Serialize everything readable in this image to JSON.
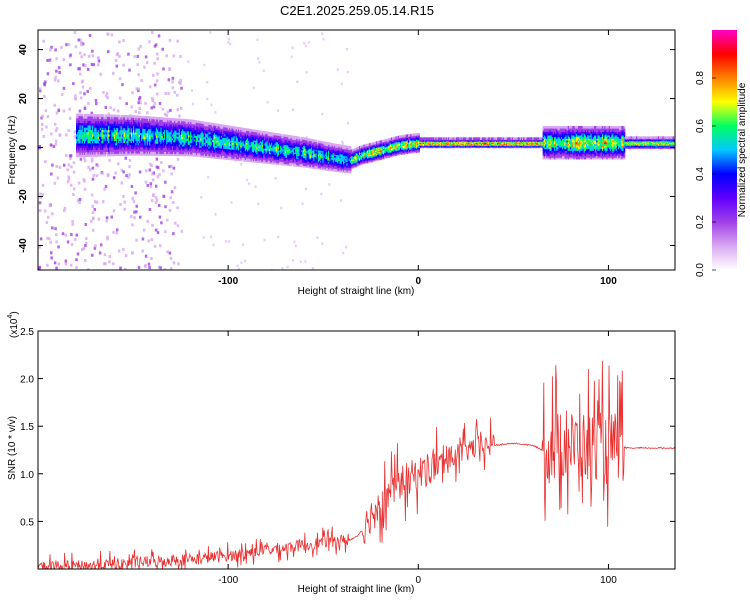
{
  "title": "C2E1.2025.259.05.14.R15",
  "chart_data": [
    {
      "type": "heatmap",
      "xlabel": "Height of straight line (km)",
      "ylabel": "Frequency (Hz)",
      "xlim": [
        -200,
        135
      ],
      "ylim": [
        -50,
        48
      ],
      "x_ticks": [
        -100,
        0,
        100
      ],
      "y_ticks": [
        -40,
        -20,
        0,
        20,
        40
      ],
      "colorbar": {
        "label": "Normalized spectral amplitude",
        "ticks": [
          "0.0",
          "0.2",
          "0.4",
          "0.6",
          "0.8"
        ],
        "range": [
          0,
          1
        ],
        "colors": [
          "#ffffff",
          "#d8a8f0",
          "#a040e8",
          "#6000ff",
          "#0000ff",
          "#00c8ff",
          "#00ff60",
          "#ffff00",
          "#ff8000",
          "#ff0000",
          "#ff00c8"
        ]
      },
      "ridge": [
        {
          "x": -180,
          "y": 5
        },
        {
          "x": -150,
          "y": 5
        },
        {
          "x": -120,
          "y": 4
        },
        {
          "x": -100,
          "y": 2
        },
        {
          "x": -80,
          "y": 0
        },
        {
          "x": -60,
          "y": -2
        },
        {
          "x": -45,
          "y": -4
        },
        {
          "x": -36,
          "y": -5
        },
        {
          "x": -30,
          "y": -3
        },
        {
          "x": -20,
          "y": -1
        },
        {
          "x": -10,
          "y": 1
        },
        {
          "x": 0,
          "y": 2
        },
        {
          "x": 30,
          "y": 2
        },
        {
          "x": 60,
          "y": 2
        },
        {
          "x": 80,
          "y": 2
        },
        {
          "x": 100,
          "y": 2
        },
        {
          "x": 135,
          "y": 2
        }
      ]
    },
    {
      "type": "line",
      "xlabel": "Height of straight line (km)",
      "ylabel": "SNR (10 * v/v)",
      "multiplier": "(x10",
      "multiplier_exp": "4",
      "multiplier_close": ")",
      "xlim": [
        -200,
        135
      ],
      "ylim": [
        0,
        2.5
      ],
      "x_ticks": [
        -100,
        0,
        100
      ],
      "y_ticks": [
        "0.5",
        "1.0",
        "1.5",
        "2.0",
        "2.5"
      ],
      "color": "#e83030",
      "series": [
        {
          "x": [
            -200,
            -180,
            -160,
            -140,
            -120,
            -100,
            -80,
            -60,
            -45,
            -36,
            -32,
            -28,
            -24,
            -20,
            -15,
            -10,
            -5,
            0,
            10,
            20,
            30,
            40,
            50,
            60,
            65,
            70,
            80,
            90,
            95,
            100,
            105,
            110,
            120,
            135
          ],
          "y": [
            0.02,
            0.03,
            0.05,
            0.08,
            0.1,
            0.14,
            0.2,
            0.25,
            0.3,
            0.3,
            0.35,
            0.45,
            0.6,
            0.7,
            0.8,
            0.9,
            0.95,
            1.0,
            1.1,
            1.2,
            1.28,
            1.3,
            1.32,
            1.3,
            1.25,
            1.3,
            1.3,
            1.3,
            1.3,
            1.3,
            1.28,
            1.27,
            1.27,
            1.27
          ]
        }
      ],
      "noise_bands": [
        {
          "from": -200,
          "to": -36,
          "amp": 0.15
        },
        {
          "from": -30,
          "to": 10,
          "amp": 0.45
        },
        {
          "from": 10,
          "to": 40,
          "amp": 0.3
        },
        {
          "from": 65,
          "to": 108,
          "amp": 0.9
        }
      ]
    }
  ]
}
